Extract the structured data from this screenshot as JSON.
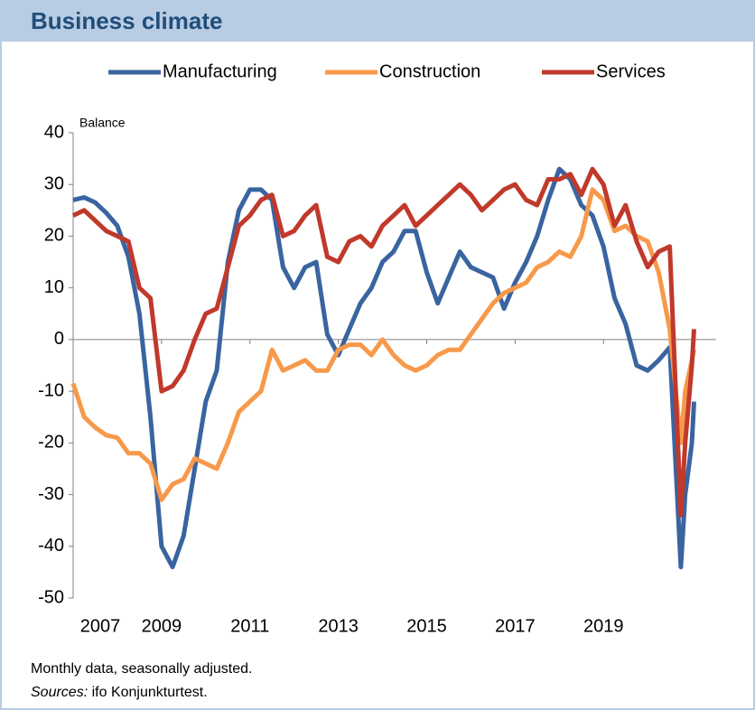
{
  "header": {
    "title": "Business climate"
  },
  "chart_data": {
    "type": "line",
    "y_axis_label": "Balance",
    "x": [
      2007,
      2007.25,
      2007.5,
      2007.75,
      2008,
      2008.25,
      2008.5,
      2008.75,
      2009,
      2009.25,
      2009.5,
      2009.75,
      2010,
      2010.25,
      2010.5,
      2010.75,
      2011,
      2011.25,
      2011.5,
      2011.75,
      2012,
      2012.25,
      2012.5,
      2012.75,
      2013,
      2013.25,
      2013.5,
      2013.75,
      2014,
      2014.25,
      2014.5,
      2014.75,
      2015,
      2015.25,
      2015.5,
      2015.75,
      2016,
      2016.25,
      2016.5,
      2016.75,
      2017,
      2017.25,
      2017.5,
      2017.75,
      2018,
      2018.25,
      2018.5,
      2018.75,
      2019,
      2019.25,
      2019.5,
      2019.75,
      2020,
      2020.25,
      2020.5,
      2020.75,
      2020.85,
      2021,
      2021.05
    ],
    "series": [
      {
        "name": "Manufacturing",
        "color": "#3a64a0",
        "values": [
          27,
          27.5,
          26.5,
          24.5,
          22,
          16,
          5,
          -15,
          -40,
          -44,
          -38,
          -25,
          -12,
          -6,
          15,
          25,
          29,
          29,
          27,
          14,
          10,
          14,
          15,
          1,
          -3,
          2,
          7,
          10,
          15,
          17,
          21,
          21,
          13,
          7,
          12,
          17,
          14,
          13,
          12,
          6,
          11,
          15,
          20,
          27,
          33,
          31,
          26,
          24,
          18,
          8,
          3,
          -5,
          -6,
          -4,
          -1.5,
          -44,
          -30,
          -20,
          -12
        ]
      },
      {
        "name": "Construction",
        "color": "#f7994a",
        "values": [
          -8.5,
          -15,
          -17,
          -18.5,
          -19,
          -22,
          -22,
          -24,
          -31,
          -28,
          -27,
          -23,
          -24,
          -25,
          -20,
          -14,
          -12,
          -10,
          -2,
          -6,
          -5,
          -4,
          -6,
          -6,
          -2,
          -1,
          -1,
          -3,
          0,
          -3,
          -5,
          -6,
          -5,
          -3,
          -2,
          -2,
          1,
          4,
          7,
          9,
          10,
          11,
          14,
          15,
          17,
          16,
          20,
          29,
          27,
          21,
          22,
          20,
          19,
          13,
          2,
          -20,
          -10,
          -4,
          -2
        ]
      },
      {
        "name": "Services",
        "color": "#c0392b",
        "values": [
          24,
          25,
          23,
          21,
          20,
          19,
          10,
          8,
          -10,
          -9,
          -6,
          0,
          5,
          6,
          14,
          22,
          24,
          27,
          28,
          20,
          21,
          24,
          26,
          16,
          15,
          19,
          20,
          18,
          22,
          24,
          26,
          22,
          24,
          26,
          28,
          30,
          28,
          25,
          27,
          29,
          30,
          27,
          26,
          31,
          31,
          32,
          28,
          33,
          30,
          22,
          26,
          19,
          14,
          17,
          18,
          -34,
          -20,
          -5,
          2
        ]
      }
    ],
    "xlim": [
      2007,
      2021.55
    ],
    "xticks": [
      2007,
      2009,
      2011,
      2013,
      2015,
      2017,
      2019
    ],
    "ylim": [
      -50,
      40
    ],
    "yticks": [
      40,
      30,
      20,
      10,
      0,
      -10,
      -20,
      -30,
      -40,
      -50
    ],
    "legend": "top"
  },
  "footer": {
    "note": "Monthly data, seasonally adjusted.",
    "sources_label": "Sources:",
    "sources": "ifo Konjunkturtest."
  }
}
